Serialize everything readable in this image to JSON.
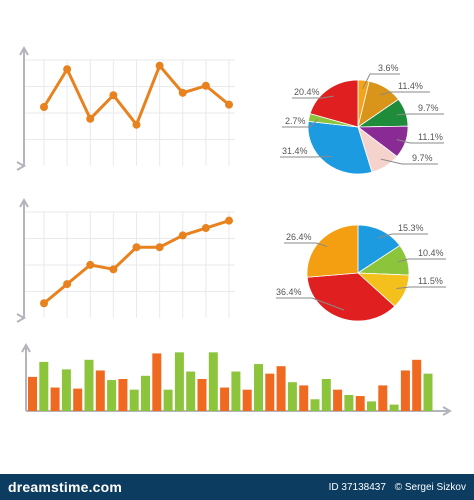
{
  "chart_data": [
    {
      "type": "line",
      "x": [
        1,
        2,
        3,
        4,
        5,
        6,
        7,
        8,
        9
      ],
      "values": [
        5,
        8.2,
        4,
        6,
        3.5,
        8.5,
        6.2,
        6.8,
        5.2
      ],
      "ylim": [
        0,
        10
      ],
      "grid": true,
      "colors": {
        "line": "#e8821e"
      }
    },
    {
      "type": "pie",
      "labels": [
        "3.6%",
        "11.4%",
        "9.7%",
        "11.1%",
        "9.7%",
        "31.4%",
        "2.7%",
        "20.4%"
      ],
      "values": [
        3.6,
        11.4,
        9.7,
        11.1,
        9.7,
        31.4,
        2.7,
        20.4
      ],
      "colors": [
        "#f4a31c",
        "#d9941a",
        "#1e8c3a",
        "#8a2a94",
        "#f6d2cc",
        "#1c9be0",
        "#8cc43c",
        "#e02020"
      ]
    },
    {
      "type": "line",
      "x": [
        1,
        2,
        3,
        4,
        5,
        6,
        7,
        8,
        9
      ],
      "values": [
        1,
        2.3,
        3.6,
        3.3,
        4.8,
        4.8,
        5.6,
        6.1,
        6.6
      ],
      "ylim": [
        0,
        8
      ],
      "grid": true,
      "colors": {
        "line": "#e8821e"
      }
    },
    {
      "type": "pie",
      "labels": [
        "15.3%",
        "10.4%",
        "11.5%",
        "36.4%",
        "26.4%"
      ],
      "values": [
        15.3,
        10.4,
        11.5,
        36.4,
        26.4
      ],
      "colors": [
        "#1c9be0",
        "#8cc43c",
        "#f4c11c",
        "#e02020",
        "#f49e12"
      ]
    },
    {
      "type": "bar",
      "values": [
        3.2,
        4.6,
        2.2,
        3.9,
        2.1,
        4.8,
        3.8,
        2.9,
        3.0,
        2.0,
        3.3,
        5.4,
        2.0,
        5.5,
        3.7,
        3.0,
        5.5,
        2.2,
        3.7,
        2.0,
        4.4,
        3.5,
        4.2,
        2.7,
        2.4,
        1.1,
        3.0,
        2.0,
        1.5,
        1.4,
        0.9,
        2.4,
        0.6,
        3.8,
        4.8,
        3.5
      ],
      "colors": [
        "#ef6a20",
        "#8cc43c",
        "#ef6a20",
        "#8cc43c",
        "#ef6a20",
        "#8cc43c",
        "#ef6a20",
        "#8cc43c",
        "#ef6a20",
        "#8cc43c",
        "#8cc43c",
        "#ef6a20",
        "#8cc43c",
        "#8cc43c",
        "#8cc43c",
        "#ef6a20",
        "#8cc43c",
        "#ef6a20",
        "#8cc43c",
        "#ef6a20",
        "#8cc43c",
        "#ef6a20",
        "#ef6a20",
        "#8cc43c",
        "#ef6a20",
        "#8cc43c",
        "#8cc43c",
        "#ef6a20",
        "#8cc43c",
        "#ef6a20",
        "#8cc43c",
        "#ef6a20",
        "#8cc43c",
        "#ef6a20",
        "#ef6a20",
        "#8cc43c"
      ],
      "ylim": [
        0,
        6
      ]
    }
  ],
  "footer": {
    "brand": "dreamstime.com",
    "id_text": "ID 37138437",
    "copyright": "© Sergei Sizkov"
  }
}
